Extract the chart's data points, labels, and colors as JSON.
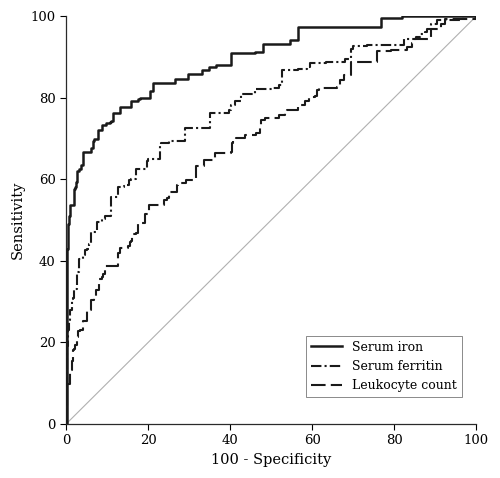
{
  "title": "",
  "xlabel": "100 - Specificity",
  "ylabel": "Sensitivity",
  "xlim": [
    0,
    100
  ],
  "ylim": [
    0,
    100
  ],
  "xticks": [
    0,
    20,
    40,
    60,
    80,
    100
  ],
  "yticks": [
    0,
    20,
    40,
    60,
    80,
    100
  ],
  "legend_labels": [
    "Serum iron",
    "Serum ferritin",
    "Leukocyte count"
  ],
  "legend_loc": "lower right",
  "background_color": "#ffffff",
  "line_color": "#1a1a1a",
  "reference_color": "#b0b0b0",
  "linewidth": 1.5,
  "ref_linewidth": 0.8,
  "figsize": [
    5.0,
    4.78
  ],
  "dpi": 100,
  "curve1_auc": 0.875,
  "curve2_auc": 0.775,
  "curve3_auc": 0.695
}
